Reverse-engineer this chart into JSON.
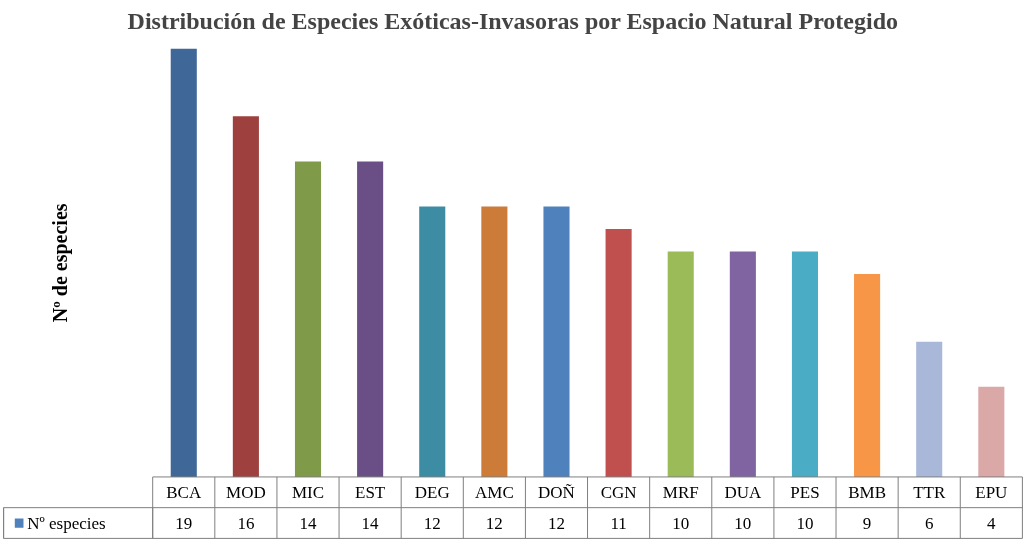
{
  "chart_data": {
    "type": "bar",
    "title": "Distribución de Especies Exóticas-Invasoras por Espacio Natural Protegido",
    "ylabel": "Nº de especies",
    "categories": [
      "BCA",
      "MOD",
      "MIC",
      "EST",
      "DEG",
      "AMC",
      "DOÑ",
      "CGN",
      "MRF",
      "DUA",
      "PES",
      "BMB",
      "TTR",
      "EPU"
    ],
    "series": [
      {
        "name": "Nº especies",
        "color": "#4f81bd",
        "colors": [
          "#3f6797",
          "#9e413e",
          "#7f9a48",
          "#6a4f87",
          "#3c8da3",
          "#cc7b38",
          "#4f81bd",
          "#c0504d",
          "#9bbb59",
          "#8064a2",
          "#4bacc6",
          "#f79646",
          "#a9b8d9",
          "#d9a8a7"
        ],
        "values": [
          19,
          16,
          14,
          14,
          12,
          12,
          12,
          11,
          10,
          10,
          10,
          9,
          6,
          4
        ]
      }
    ],
    "data_labels": true,
    "legend": "bottom",
    "grid": false
  }
}
